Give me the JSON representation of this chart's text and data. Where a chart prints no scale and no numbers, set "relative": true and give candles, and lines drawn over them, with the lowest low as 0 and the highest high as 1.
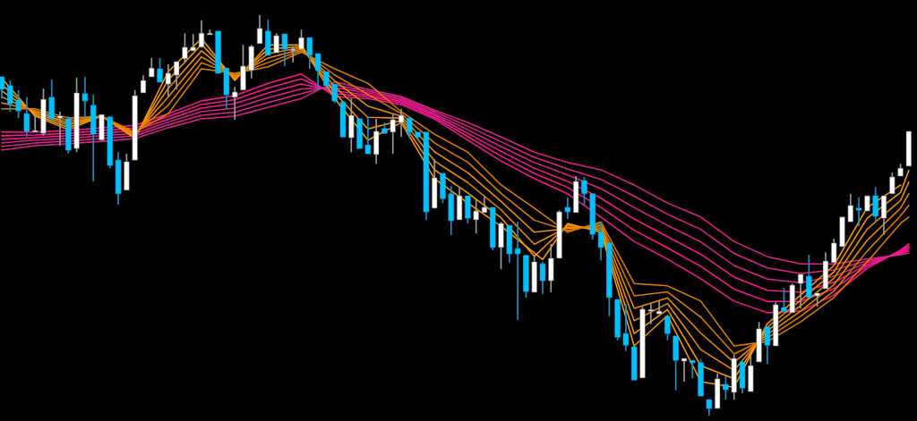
{
  "chart_data": {
    "type": "candlestick",
    "relative": true,
    "categories": [
      null,
      null,
      null,
      null,
      null,
      null,
      null,
      null,
      null,
      null,
      null,
      null,
      null,
      null,
      null,
      null,
      null,
      null,
      null,
      null,
      null,
      null,
      null,
      null,
      null,
      null,
      null,
      null,
      null,
      null,
      null,
      null,
      null,
      null,
      null,
      null,
      null,
      null,
      null,
      null,
      null,
      null,
      null,
      null,
      null,
      null,
      null,
      null,
      null,
      null,
      null,
      null,
      null,
      null,
      null,
      null,
      null,
      null,
      null,
      null,
      null,
      null,
      null,
      null,
      null,
      null,
      null,
      null,
      null,
      null,
      null,
      null,
      null,
      null,
      null,
      null,
      null,
      null,
      null,
      null,
      null,
      null,
      null,
      null,
      null,
      null,
      null,
      null,
      null,
      null,
      null,
      null,
      null,
      null,
      null,
      null,
      null,
      null,
      null,
      null,
      null,
      null,
      null,
      null,
      null,
      null,
      null,
      null,
      null,
      null
    ],
    "ohlc": [
      [
        0.846,
        0.846,
        0.792,
        0.815
      ],
      [
        0.824,
        0.837,
        0.759,
        0.779
      ],
      [
        0.788,
        0.813,
        0.743,
        0.761
      ],
      [
        0.754,
        0.795,
        0.696,
        0.71
      ],
      [
        0.708,
        0.752,
        0.708,
        0.712
      ],
      [
        0.705,
        0.817,
        0.699,
        0.79
      ],
      [
        0.795,
        0.839,
        0.737,
        0.741
      ],
      [
        0.743,
        0.759,
        0.674,
        0.748
      ],
      [
        0.741,
        0.748,
        0.654,
        0.663
      ],
      [
        0.667,
        0.844,
        0.658,
        0.806
      ],
      [
        0.804,
        0.846,
        0.743,
        0.786
      ],
      [
        0.775,
        0.801,
        0.585,
        0.703
      ],
      [
        0.688,
        0.752,
        0.688,
        0.752
      ],
      [
        0.746,
        0.746,
        0.618,
        0.625
      ],
      [
        0.638,
        0.658,
        0.527,
        0.554
      ],
      [
        0.563,
        0.654,
        0.563,
        0.634
      ],
      [
        0.638,
        0.813,
        0.638,
        0.799
      ],
      [
        0.806,
        0.85,
        0.806,
        0.837
      ],
      [
        0.846,
        0.893,
        0.846,
        0.868
      ],
      [
        0.866,
        0.893,
        0.833,
        0.833
      ],
      [
        0.828,
        0.877,
        0.797,
        0.855
      ],
      [
        0.85,
        0.884,
        0.815,
        0.884
      ],
      [
        0.891,
        0.955,
        0.882,
        0.92
      ],
      [
        0.911,
        0.953,
        0.911,
        0.92
      ],
      [
        0.92,
        0.987,
        0.92,
        0.955
      ],
      [
        0.951,
        0.964,
        0.951,
        0.955
      ],
      [
        0.96,
        0.96,
        0.855,
        0.855
      ],
      [
        0.868,
        0.868,
        0.766,
        0.801
      ],
      [
        0.795,
        0.821,
        0.739,
        0.808
      ],
      [
        0.813,
        0.926,
        0.813,
        0.873
      ],
      [
        0.862,
        0.926,
        0.842,
        0.922
      ],
      [
        0.929,
        1.0,
        0.929,
        0.967
      ],
      [
        0.96,
        0.989,
        0.9,
        0.9
      ],
      [
        0.906,
        0.955,
        0.906,
        0.949
      ],
      [
        0.953,
        0.953,
        0.873,
        0.915
      ],
      [
        0.911,
        0.92,
        0.882,
        0.913
      ],
      [
        0.915,
        0.964,
        0.915,
        0.944
      ],
      [
        0.944,
        0.944,
        0.866,
        0.9
      ],
      [
        0.904,
        0.904,
        0.815,
        0.862
      ],
      [
        0.859,
        0.859,
        0.815,
        0.824
      ],
      [
        0.828,
        0.828,
        0.781,
        0.786
      ],
      [
        0.783,
        0.783,
        0.696,
        0.696
      ],
      [
        0.694,
        0.792,
        0.658,
        0.75
      ],
      [
        0.741,
        0.741,
        0.667,
        0.667
      ],
      [
        0.676,
        0.748,
        0.654,
        0.654
      ],
      [
        0.652,
        0.741,
        0.629,
        0.71
      ],
      [
        0.717,
        0.732,
        0.705,
        0.705
      ],
      [
        0.708,
        0.754,
        0.654,
        0.739
      ],
      [
        0.732,
        0.766,
        0.696,
        0.75
      ],
      [
        0.743,
        0.743,
        0.692,
        0.708
      ],
      [
        0.708,
        0.708,
        0.688,
        0.696
      ],
      [
        0.708,
        0.708,
        0.489,
        0.509
      ],
      [
        0.518,
        0.641,
        0.518,
        0.594
      ],
      [
        0.605,
        0.605,
        0.531,
        0.542
      ],
      [
        0.554,
        0.574,
        0.451,
        0.487
      ],
      [
        0.489,
        0.571,
        0.489,
        0.549
      ],
      [
        0.549,
        0.549,
        0.48,
        0.493
      ],
      [
        0.489,
        0.54,
        0.455,
        0.511
      ],
      [
        0.507,
        0.547,
        0.507,
        0.52
      ],
      [
        0.52,
        0.52,
        0.413,
        0.42
      ],
      [
        0.42,
        0.484,
        0.366,
        0.48
      ],
      [
        0.475,
        0.475,
        0.382,
        0.404
      ],
      [
        0.417,
        0.484,
        0.239,
        0.404
      ],
      [
        0.4,
        0.4,
        0.295,
        0.31
      ],
      [
        0.308,
        0.402,
        0.308,
        0.384
      ],
      [
        0.379,
        0.384,
        0.304,
        0.337
      ],
      [
        0.337,
        0.429,
        0.308,
        0.393
      ],
      [
        0.393,
        0.513,
        0.393,
        0.509
      ],
      [
        0.52,
        0.545,
        0.491,
        0.509
      ],
      [
        0.507,
        0.598,
        0.507,
        0.585
      ],
      [
        0.587,
        0.596,
        0.525,
        0.554
      ],
      [
        0.554,
        0.554,
        0.44,
        0.453
      ],
      [
        0.458,
        0.484,
        0.388,
        0.42
      ],
      [
        0.431,
        0.431,
        0.248,
        0.295
      ],
      [
        0.29,
        0.29,
        0.188,
        0.196
      ],
      [
        0.205,
        0.279,
        0.161,
        0.176
      ],
      [
        0.172,
        0.172,
        0.089,
        0.089
      ],
      [
        0.094,
        0.272,
        0.094,
        0.266
      ],
      [
        0.261,
        0.279,
        0.228,
        0.263
      ],
      [
        0.254,
        0.286,
        0.254,
        0.261
      ],
      [
        0.248,
        0.248,
        0.188,
        0.205
      ],
      [
        0.199,
        0.199,
        0.063,
        0.138
      ],
      [
        0.136,
        0.143,
        0.085,
        0.143
      ],
      [
        0.138,
        0.138,
        0.094,
        0.132
      ],
      [
        0.132,
        0.141,
        0.049,
        0.049
      ],
      [
        0.04,
        0.04,
        0.0,
        0.018
      ],
      [
        0.018,
        0.105,
        0.018,
        0.092
      ],
      [
        0.078,
        0.098,
        0.04,
        0.065
      ],
      [
        0.058,
        0.152,
        0.04,
        0.143
      ],
      [
        0.134,
        0.134,
        0.056,
        0.069
      ],
      [
        0.06,
        0.152,
        0.06,
        0.125
      ],
      [
        0.134,
        0.234,
        0.134,
        0.217
      ],
      [
        0.221,
        0.221,
        0.129,
        0.176
      ],
      [
        0.174,
        0.283,
        0.174,
        0.277
      ],
      [
        0.27,
        0.319,
        0.257,
        0.261
      ],
      [
        0.257,
        0.33,
        0.257,
        0.326
      ],
      [
        0.33,
        0.353,
        0.268,
        0.353
      ],
      [
        0.348,
        0.402,
        0.295,
        0.295
      ],
      [
        0.299,
        0.306,
        0.272,
        0.306
      ],
      [
        0.317,
        0.408,
        0.317,
        0.386
      ],
      [
        0.382,
        0.442,
        0.382,
        0.431
      ],
      [
        0.422,
        0.496,
        0.422,
        0.496
      ],
      [
        0.484,
        0.554,
        0.484,
        0.525
      ],
      [
        0.518,
        0.545,
        0.473,
        0.513
      ],
      [
        0.511,
        0.549,
        0.511,
        0.549
      ],
      [
        0.549,
        0.571,
        0.484,
        0.498
      ],
      [
        0.493,
        0.549,
        0.451,
        0.549
      ],
      [
        0.554,
        0.607,
        0.554,
        0.596
      ],
      [
        0.598,
        0.629,
        0.598,
        0.618
      ],
      [
        0.623,
        0.71,
        0.623,
        0.71
      ]
    ],
    "colors": [
      "#00bfff",
      "#00bfff",
      "#00bfff",
      "#00bfff",
      "#ffffff",
      "#ffffff",
      "#00bfff",
      "#ffffff",
      "#00bfff",
      "#ffffff",
      "#00bfff",
      "#00bfff",
      "#ffffff",
      "#00bfff",
      "#00bfff",
      "#ffffff",
      "#ffffff",
      "#ffffff",
      "#ffffff",
      "#00bfff",
      "#ffffff",
      "#ffffff",
      "#ffffff",
      "#ffffff",
      "#ffffff",
      "#ffffff",
      "#00bfff",
      "#00bfff",
      "#ffffff",
      "#ffffff",
      "#ffffff",
      "#ffffff",
      "#00bfff",
      "#ffffff",
      "#00bfff",
      "#ffffff",
      "#ffffff",
      "#00bfff",
      "#00bfff",
      "#00bfff",
      "#00bfff",
      "#00bfff",
      "#ffffff",
      "#00bfff",
      "#00bfff",
      "#ffffff",
      "#00bfff",
      "#ffffff",
      "#ffffff",
      "#00bfff",
      "#00bfff",
      "#00bfff",
      "#ffffff",
      "#00bfff",
      "#00bfff",
      "#ffffff",
      "#00bfff",
      "#ffffff",
      "#ffffff",
      "#00bfff",
      "#ffffff",
      "#00bfff",
      "#00bfff",
      "#00bfff",
      "#ffffff",
      "#00bfff",
      "#ffffff",
      "#ffffff",
      "#00bfff",
      "#ffffff",
      "#00bfff",
      "#00bfff",
      "#00bfff",
      "#00bfff",
      "#00bfff",
      "#00bfff",
      "#00bfff",
      "#ffffff",
      "#ffffff",
      "#ffffff",
      "#00bfff",
      "#00bfff",
      "#ffffff",
      "#00bfff",
      "#00bfff",
      "#00bfff",
      "#ffffff",
      "#00bfff",
      "#ffffff",
      "#00bfff",
      "#ffffff",
      "#ffffff",
      "#00bfff",
      "#ffffff",
      "#00bfff",
      "#ffffff",
      "#ffffff",
      "#00bfff",
      "#ffffff",
      "#ffffff",
      "#ffffff",
      "#ffffff",
      "#ffffff",
      "#00bfff",
      "#ffffff",
      "#00bfff",
      "#ffffff",
      "#ffffff",
      "#ffffff",
      "#ffffff"
    ],
    "series": [
      {
        "type": "line",
        "color": "#ff1493",
        "values": [
          0.708,
          null,
          null,
          null,
          0.708,
          null,
          null,
          null,
          0.712,
          null,
          null,
          null,
          0.719,
          null,
          null,
          null,
          0.725,
          null,
          null,
          null,
          0.754,
          null,
          null,
          null,
          0.786,
          null,
          null,
          null,
          0.799,
          null,
          null,
          null,
          0.83,
          null,
          null,
          null,
          0.853,
          null,
          null,
          null,
          0.797,
          null,
          null,
          null,
          0.792,
          null,
          null,
          null,
          0.777,
          null,
          null,
          null,
          0.741,
          null,
          null,
          null,
          0.688,
          null,
          null,
          null,
          0.636,
          null,
          null,
          null,
          0.592,
          null,
          null,
          null,
          0.554,
          null,
          null,
          null,
          0.496,
          null,
          null,
          null,
          0.435,
          null,
          null,
          null,
          0.391,
          null,
          null,
          null,
          0.342,
          null,
          null,
          null,
          0.286,
          null,
          null,
          null,
          0.257,
          null,
          null,
          null,
          0.261,
          null,
          null,
          null,
          0.301,
          null,
          null,
          null,
          0.368,
          null,
          null,
          null,
          0.413,
          0.429
        ]
      },
      {
        "type": "line",
        "color": "#ff1493",
        "values": [
          0.699,
          null,
          null,
          null,
          0.701,
          null,
          null,
          null,
          0.705,
          null,
          null,
          null,
          0.712,
          null,
          null,
          null,
          0.718,
          null,
          null,
          null,
          0.747,
          null,
          null,
          null,
          0.777,
          null,
          null,
          null,
          0.789,
          null,
          null,
          null,
          0.818,
          null,
          null,
          null,
          0.841,
          null,
          null,
          null,
          0.804,
          null,
          null,
          null,
          0.797,
          null,
          null,
          null,
          0.781,
          null,
          null,
          null,
          0.745,
          null,
          null,
          null,
          0.697,
          null,
          null,
          null,
          0.648,
          null,
          null,
          null,
          0.605,
          null,
          null,
          null,
          0.57,
          null,
          null,
          null,
          0.52,
          null,
          null,
          null,
          0.463,
          null,
          null,
          null,
          0.419,
          null,
          null,
          null,
          0.373,
          null,
          null,
          null,
          0.316,
          null,
          null,
          null,
          0.285,
          null,
          null,
          null,
          0.285,
          null,
          null,
          null,
          0.317,
          null,
          null,
          null,
          0.373,
          null,
          null,
          null,
          0.411,
          0.424
        ]
      },
      {
        "type": "line",
        "color": "#ff1493",
        "values": [
          0.69,
          null,
          null,
          null,
          0.694,
          null,
          null,
          null,
          0.699,
          null,
          null,
          null,
          0.705,
          null,
          null,
          null,
          0.712,
          null,
          null,
          null,
          0.74,
          null,
          null,
          null,
          0.768,
          null,
          null,
          null,
          0.779,
          null,
          null,
          null,
          0.806,
          null,
          null,
          null,
          0.828,
          null,
          null,
          null,
          0.811,
          null,
          null,
          null,
          0.801,
          null,
          null,
          null,
          0.785,
          null,
          null,
          null,
          0.75,
          null,
          null,
          null,
          0.705,
          null,
          null,
          null,
          0.66,
          null,
          null,
          null,
          0.618,
          null,
          null,
          null,
          0.585,
          null,
          null,
          null,
          0.543,
          null,
          null,
          null,
          0.491,
          null,
          null,
          null,
          0.447,
          null,
          null,
          null,
          0.403,
          null,
          null,
          null,
          0.346,
          null,
          null,
          null,
          0.313,
          null,
          null,
          null,
          0.308,
          null,
          null,
          null,
          0.333,
          null,
          null,
          null,
          0.377,
          null,
          null,
          null,
          0.409,
          0.42
        ]
      },
      {
        "type": "line",
        "color": "#e0218a",
        "values": [
          0.681,
          null,
          null,
          null,
          0.688,
          null,
          null,
          null,
          0.692,
          null,
          null,
          null,
          0.699,
          null,
          null,
          null,
          0.705,
          null,
          null,
          null,
          0.733,
          null,
          null,
          null,
          0.759,
          null,
          null,
          null,
          0.768,
          null,
          null,
          null,
          0.794,
          null,
          null,
          null,
          0.816,
          null,
          null,
          null,
          0.819,
          null,
          null,
          null,
          0.806,
          null,
          null,
          null,
          0.789,
          null,
          null,
          null,
          0.754,
          null,
          null,
          null,
          0.714,
          null,
          null,
          null,
          0.672,
          null,
          null,
          null,
          0.632,
          null,
          null,
          null,
          0.601,
          null,
          null,
          null,
          0.567,
          null,
          null,
          null,
          0.52,
          null,
          null,
          null,
          0.475,
          null,
          null,
          null,
          0.434,
          null,
          null,
          null,
          0.375,
          null,
          null,
          null,
          0.341,
          null,
          null,
          null,
          0.332,
          null,
          null,
          null,
          0.348,
          null,
          null,
          null,
          0.382,
          null,
          null,
          null,
          0.406,
          0.415
        ]
      },
      {
        "type": "line",
        "color": "#e0218a",
        "values": [
          0.672,
          null,
          null,
          null,
          0.681,
          null,
          null,
          null,
          0.686,
          null,
          null,
          null,
          0.692,
          null,
          null,
          null,
          0.699,
          null,
          null,
          null,
          0.726,
          null,
          null,
          null,
          0.75,
          null,
          null,
          null,
          0.758,
          null,
          null,
          null,
          0.782,
          null,
          null,
          null,
          0.804,
          null,
          null,
          null,
          0.826,
          null,
          null,
          null,
          0.81,
          null,
          null,
          null,
          0.793,
          null,
          null,
          null,
          0.759,
          null,
          null,
          null,
          0.723,
          null,
          null,
          null,
          0.684,
          null,
          null,
          null,
          0.645,
          null,
          null,
          null,
          0.616,
          null,
          null,
          null,
          0.59,
          null,
          null,
          null,
          0.548,
          null,
          null,
          null,
          0.503,
          null,
          null,
          null,
          0.465,
          null,
          null,
          null,
          0.405,
          null,
          null,
          null,
          0.369,
          null,
          null,
          null,
          0.355,
          null,
          null,
          null,
          0.364,
          null,
          null,
          null,
          0.386,
          null,
          null,
          null,
          0.404,
          0.411
        ]
      },
      {
        "type": "line",
        "color": "#e0218a",
        "values": [
          0.663,
          null,
          null,
          null,
          0.674,
          null,
          null,
          null,
          0.679,
          null,
          null,
          null,
          0.685,
          null,
          null,
          null,
          0.692,
          null,
          null,
          null,
          0.719,
          null,
          null,
          null,
          0.741,
          null,
          null,
          null,
          0.748,
          null,
          null,
          null,
          0.77,
          null,
          null,
          null,
          0.792,
          null,
          null,
          null,
          0.833,
          null,
          null,
          null,
          0.815,
          null,
          null,
          null,
          0.797,
          null,
          null,
          null,
          0.763,
          null,
          null,
          null,
          0.732,
          null,
          null,
          null,
          0.696,
          null,
          null,
          null,
          0.658,
          null,
          null,
          null,
          0.632,
          null,
          null,
          null,
          0.614,
          null,
          null,
          null,
          0.576,
          null,
          null,
          null,
          0.531,
          null,
          null,
          null,
          0.496,
          null,
          null,
          null,
          0.435,
          null,
          null,
          null,
          0.397,
          null,
          null,
          null,
          0.379,
          null,
          null,
          null,
          0.379,
          null,
          null,
          null,
          0.391,
          null,
          null,
          null,
          0.402,
          0.406
        ]
      },
      {
        "type": "line",
        "color": "#ff9900",
        "values": [
          0.842,
          null,
          null,
          null,
          0.748,
          null,
          null,
          null,
          0.714,
          null,
          null,
          null,
          0.748,
          null,
          null,
          null,
          0.692,
          null,
          null,
          null,
          0.859,
          null,
          null,
          null,
          0.942,
          null,
          null,
          null,
          0.837,
          null,
          null,
          null,
          0.926,
          null,
          null,
          null,
          0.926,
          null,
          null,
          null,
          0.792,
          null,
          null,
          null,
          0.688,
          null,
          null,
          null,
          0.732,
          null,
          null,
          null,
          0.592,
          null,
          null,
          null,
          0.531,
          null,
          null,
          null,
          0.473,
          null,
          null,
          null,
          null,
          0.39,
          null,
          null,
          0.48,
          null,
          null,
          null,
          0.458,
          null,
          null,
          null,
          0.174,
          null,
          null,
          null,
          0.25,
          null,
          null,
          null,
          0.085,
          null,
          null,
          null,
          0.071,
          null,
          null,
          null,
          0.23,
          null,
          null,
          null,
          0.301,
          null,
          null,
          null,
          0.375,
          null,
          null,
          null,
          0.52,
          null,
          null,
          null,
          0.576,
          null
        ]
      },
      {
        "type": "line",
        "color": "#ff9900",
        "values": [
          0.827,
          null,
          null,
          null,
          0.751,
          null,
          null,
          null,
          0.72,
          null,
          null,
          null,
          0.748,
          null,
          null,
          null,
          0.695,
          null,
          null,
          null,
          0.838,
          null,
          null,
          null,
          0.927,
          null,
          null,
          null,
          0.841,
          null,
          null,
          null,
          0.915,
          null,
          null,
          null,
          0.922,
          null,
          null,
          null,
          0.807,
          null,
          null,
          null,
          0.716,
          null,
          null,
          null,
          0.737,
          null,
          null,
          null,
          0.614,
          null,
          null,
          null,
          0.556,
          null,
          null,
          null,
          0.494,
          null,
          null,
          null,
          0.398,
          null,
          null,
          null,
          0.476,
          null,
          null,
          null,
          0.463,
          null,
          null,
          null,
          0.205,
          null,
          null,
          null,
          0.265,
          null,
          null,
          null,
          0.125,
          null,
          null,
          null,
          0.092,
          null,
          null,
          null,
          0.221,
          null,
          null,
          null,
          0.288,
          null,
          null,
          null,
          0.359,
          null,
          null,
          null,
          0.493,
          null,
          null,
          null,
          0.557,
          0.612
        ]
      },
      {
        "type": "line",
        "color": "#f08c00",
        "values": [
          0.811,
          null,
          null,
          null,
          0.755,
          null,
          null,
          null,
          0.726,
          null,
          null,
          null,
          0.748,
          null,
          null,
          null,
          0.698,
          null,
          null,
          null,
          0.817,
          null,
          null,
          null,
          0.911,
          null,
          null,
          null,
          0.844,
          null,
          null,
          null,
          0.904,
          null,
          null,
          null,
          0.919,
          null,
          null,
          null,
          0.822,
          null,
          null,
          null,
          0.745,
          null,
          null,
          null,
          0.743,
          null,
          null,
          null,
          0.636,
          null,
          null,
          null,
          0.582,
          null,
          null,
          null,
          0.514,
          null,
          null,
          null,
          0.428,
          null,
          null,
          null,
          0.471,
          null,
          null,
          null,
          0.468,
          null,
          null,
          null,
          0.237,
          null,
          null,
          null,
          0.28,
          null,
          null,
          null,
          0.165,
          null,
          null,
          null,
          0.113,
          null,
          null,
          null,
          0.212,
          null,
          null,
          null,
          0.275,
          null,
          null,
          null,
          0.343,
          null,
          null,
          null,
          0.466,
          null,
          null,
          null,
          0.537,
          0.583
        ]
      },
      {
        "type": "line",
        "color": "#f08c00",
        "values": [
          0.796,
          null,
          null,
          null,
          0.759,
          null,
          null,
          null,
          0.731,
          null,
          null,
          null,
          0.748,
          null,
          null,
          null,
          0.702,
          null,
          null,
          null,
          0.796,
          null,
          null,
          null,
          0.896,
          null,
          null,
          null,
          0.848,
          null,
          null,
          null,
          0.893,
          null,
          null,
          null,
          0.915,
          null,
          null,
          null,
          0.836,
          null,
          null,
          null,
          0.773,
          null,
          null,
          null,
          0.748,
          null,
          null,
          null,
          0.659,
          null,
          null,
          null,
          0.607,
          null,
          null,
          null,
          0.535,
          null,
          null,
          null,
          0.458,
          null,
          null,
          null,
          0.467,
          null,
          null,
          null,
          0.474,
          null,
          null,
          null,
          0.268,
          null,
          null,
          null,
          0.294,
          null,
          null,
          null,
          0.206,
          null,
          null,
          null,
          0.133,
          null,
          null,
          null,
          0.203,
          null,
          null,
          null,
          0.261,
          null,
          null,
          null,
          0.327,
          null,
          null,
          null,
          0.438,
          null,
          null,
          null,
          0.518,
          0.554
        ]
      },
      {
        "type": "line",
        "color": "#e07b00",
        "values": [
          0.781,
          null,
          null,
          null,
          0.762,
          null,
          null,
          null,
          0.737,
          null,
          null,
          null,
          0.748,
          null,
          null,
          null,
          0.705,
          null,
          null,
          null,
          0.775,
          null,
          null,
          null,
          0.881,
          null,
          null,
          null,
          0.851,
          null,
          null,
          null,
          0.882,
          null,
          null,
          null,
          0.912,
          null,
          null,
          null,
          0.851,
          null,
          null,
          null,
          0.802,
          null,
          null,
          null,
          0.754,
          null,
          null,
          null,
          0.681,
          null,
          null,
          null,
          0.633,
          null,
          null,
          null,
          0.555,
          null,
          null,
          null,
          0.488,
          null,
          null,
          null,
          0.462,
          null,
          null,
          null,
          0.479,
          null,
          null,
          null,
          0.299,
          null,
          null,
          null,
          0.309,
          null,
          null,
          null,
          0.246,
          null,
          null,
          null,
          0.154,
          null,
          null,
          null,
          0.194,
          null,
          null,
          null,
          0.248,
          null,
          null,
          null,
          0.311,
          null,
          null,
          null,
          0.411,
          null,
          null,
          null,
          0.499,
          0.525
        ]
      },
      {
        "type": "line",
        "color": "#e07b00",
        "values": [
          0.766,
          null,
          null,
          null,
          0.766,
          null,
          null,
          null,
          0.743,
          null,
          null,
          null,
          0.748,
          null,
          null,
          null,
          0.708,
          null,
          null,
          null,
          0.754,
          null,
          null,
          null,
          0.866,
          null,
          null,
          null,
          0.855,
          null,
          null,
          null,
          0.871,
          null,
          null,
          null,
          0.908,
          null,
          null,
          null,
          0.866,
          null,
          null,
          null,
          0.83,
          null,
          null,
          null,
          0.759,
          null,
          null,
          null,
          0.703,
          null,
          null,
          null,
          0.658,
          null,
          null,
          null,
          0.576,
          null,
          null,
          null,
          0.518,
          null,
          null,
          null,
          0.458,
          null,
          null,
          null,
          0.484,
          null,
          null,
          null,
          0.33,
          null,
          null,
          null,
          0.324,
          null,
          null,
          null,
          0.286,
          null,
          null,
          null,
          0.174,
          null,
          null,
          null,
          0.185,
          null,
          null,
          null,
          0.234,
          null,
          null,
          null,
          0.295,
          null,
          null,
          null,
          0.384,
          null,
          null,
          null,
          0.48,
          0.496
        ]
      }
    ]
  }
}
